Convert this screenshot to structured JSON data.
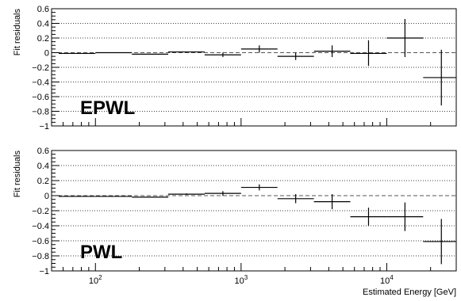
{
  "chart_data": [
    {
      "type": "scatter",
      "panel_label": "EPWL",
      "ylabel": "Fit residuals",
      "xlabel": "",
      "x_scale": "log",
      "xlim": [
        50,
        30000
      ],
      "ylim": [
        -1,
        0.6
      ],
      "yticks": [
        -1,
        -0.8,
        -0.6,
        -0.4,
        -0.2,
        0,
        0.2,
        0.4,
        0.6
      ],
      "ytick_labels": [
        "−1",
        "−0.8",
        "−0.6",
        "−0.4",
        "−0.2",
        "0",
        "0.2",
        "0.4",
        "0.6"
      ],
      "xticks": [
        100,
        1000,
        10000
      ],
      "xtick_labels": [],
      "grid_y": true,
      "reference_line": 0,
      "points": [
        {
          "x": 75,
          "xlo": 56,
          "xhi": 100,
          "y": -0.01,
          "ylo": -0.01,
          "yhi": -0.01
        },
        {
          "x": 133,
          "xlo": 100,
          "xhi": 178,
          "y": 0.0,
          "ylo": 0.0,
          "yhi": 0.0
        },
        {
          "x": 237,
          "xlo": 178,
          "xhi": 316,
          "y": -0.02,
          "ylo": -0.02,
          "yhi": -0.02
        },
        {
          "x": 422,
          "xlo": 316,
          "xhi": 562,
          "y": 0.01,
          "ylo": 0.01,
          "yhi": 0.01
        },
        {
          "x": 750,
          "xlo": 562,
          "xhi": 1000,
          "y": -0.03,
          "ylo": -0.06,
          "yhi": 0.0
        },
        {
          "x": 1334,
          "xlo": 1000,
          "xhi": 1778,
          "y": 0.05,
          "ylo": 0.0,
          "yhi": 0.1
        },
        {
          "x": 2371,
          "xlo": 1778,
          "xhi": 3162,
          "y": -0.05,
          "ylo": -0.1,
          "yhi": 0.0
        },
        {
          "x": 4217,
          "xlo": 3162,
          "xhi": 5623,
          "y": 0.02,
          "ylo": -0.06,
          "yhi": 0.1
        },
        {
          "x": 7499,
          "xlo": 5623,
          "xhi": 10000,
          "y": -0.01,
          "ylo": -0.18,
          "yhi": 0.17
        },
        {
          "x": 13335,
          "xlo": 10000,
          "xhi": 17783,
          "y": 0.2,
          "ylo": -0.06,
          "yhi": 0.46
        },
        {
          "x": 23714,
          "xlo": 17783,
          "xhi": 31623,
          "y": -0.34,
          "ylo": -0.72,
          "yhi": 0.04
        }
      ]
    },
    {
      "type": "scatter",
      "panel_label": "PWL",
      "ylabel": "Fit residuals",
      "xlabel": "Estimated Energy [GeV]",
      "x_scale": "log",
      "xlim": [
        50,
        30000
      ],
      "ylim": [
        -1,
        0.6
      ],
      "yticks": [
        -1,
        -0.8,
        -0.6,
        -0.4,
        -0.2,
        0,
        0.2,
        0.4,
        0.6
      ],
      "ytick_labels": [
        "−1",
        "−0.8",
        "−0.6",
        "−0.4",
        "−0.2",
        "0",
        "0.2",
        "0.4",
        "0.6"
      ],
      "xticks": [
        100,
        1000,
        10000
      ],
      "xtick_labels": [
        {
          "base": "10",
          "exp": "2"
        },
        {
          "base": "10",
          "exp": "3"
        },
        {
          "base": "10",
          "exp": "4"
        }
      ],
      "grid_y": true,
      "reference_line": 0,
      "points": [
        {
          "x": 75,
          "xlo": 56,
          "xhi": 100,
          "y": -0.01,
          "ylo": -0.01,
          "yhi": -0.01
        },
        {
          "x": 133,
          "xlo": 100,
          "xhi": 178,
          "y": -0.01,
          "ylo": -0.01,
          "yhi": -0.01
        },
        {
          "x": 237,
          "xlo": 178,
          "xhi": 316,
          "y": -0.02,
          "ylo": -0.02,
          "yhi": -0.02
        },
        {
          "x": 422,
          "xlo": 316,
          "xhi": 562,
          "y": 0.02,
          "ylo": 0.01,
          "yhi": 0.03
        },
        {
          "x": 750,
          "xlo": 562,
          "xhi": 1000,
          "y": 0.03,
          "ylo": 0.0,
          "yhi": 0.06
        },
        {
          "x": 1334,
          "xlo": 1000,
          "xhi": 1778,
          "y": 0.11,
          "ylo": 0.07,
          "yhi": 0.15
        },
        {
          "x": 2371,
          "xlo": 1778,
          "xhi": 3162,
          "y": -0.04,
          "ylo": -0.1,
          "yhi": 0.02
        },
        {
          "x": 4217,
          "xlo": 3162,
          "xhi": 5623,
          "y": -0.08,
          "ylo": -0.18,
          "yhi": 0.02
        },
        {
          "x": 7499,
          "xlo": 5623,
          "xhi": 10000,
          "y": -0.28,
          "ylo": -0.4,
          "yhi": -0.16
        },
        {
          "x": 13335,
          "xlo": 10000,
          "xhi": 17783,
          "y": -0.28,
          "ylo": -0.47,
          "yhi": -0.09
        },
        {
          "x": 23714,
          "xlo": 17783,
          "xhi": 31623,
          "y": -0.61,
          "ylo": -0.91,
          "yhi": -0.31
        }
      ]
    }
  ]
}
